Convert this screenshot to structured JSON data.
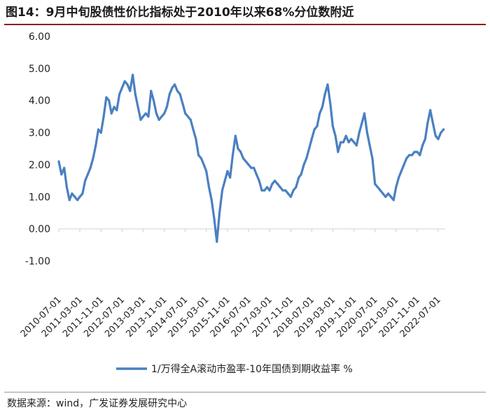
{
  "title": "图14：9月中旬股债性价比指标处于2010年以来68%分位数附近",
  "source": "数据来源：wind，广发证券发展研究中心",
  "colors": {
    "series": "#4a80c2",
    "axis": "#d0d0d0",
    "title_rule": "#8a1f1f"
  },
  "chart_data": {
    "type": "line",
    "title": "",
    "xlabel": "",
    "ylabel": "",
    "ylim": [
      -1.0,
      6.0
    ],
    "yticks": [
      "6.00",
      "5.00",
      "4.00",
      "3.00",
      "2.00",
      "1.00",
      "0.00",
      "-1.00"
    ],
    "xticks": [
      "2010-07-01",
      "2011-03-01",
      "2011-11-01",
      "2012-07-01",
      "2013-03-01",
      "2013-11-01",
      "2014-07-01",
      "2015-03-01",
      "2015-11-01",
      "2016-07-01",
      "2017-03-01",
      "2017-11-01",
      "2018-07-01",
      "2019-03-01",
      "2019-11-01",
      "2020-07-01",
      "2021-03-01",
      "2021-11-01",
      "2022-07-01"
    ],
    "legend": "bottom",
    "series": [
      {
        "name": "1/万得全A滚动市盈率-10年国债到期收益率 %",
        "points": [
          [
            "2010-07-01",
            2.1
          ],
          [
            "2010-08-01",
            1.7
          ],
          [
            "2010-09-01",
            1.9
          ],
          [
            "2010-10-01",
            1.3
          ],
          [
            "2010-11-01",
            0.9
          ],
          [
            "2010-12-01",
            1.1
          ],
          [
            "2011-01-01",
            1.0
          ],
          [
            "2011-02-01",
            0.9
          ],
          [
            "2011-03-01",
            1.0
          ],
          [
            "2011-04-01",
            1.1
          ],
          [
            "2011-05-01",
            1.5
          ],
          [
            "2011-06-01",
            1.7
          ],
          [
            "2011-07-01",
            1.9
          ],
          [
            "2011-08-01",
            2.2
          ],
          [
            "2011-09-01",
            2.6
          ],
          [
            "2011-10-01",
            3.1
          ],
          [
            "2011-11-01",
            3.0
          ],
          [
            "2011-12-01",
            3.5
          ],
          [
            "2012-01-01",
            4.1
          ],
          [
            "2012-02-01",
            4.0
          ],
          [
            "2012-03-01",
            3.6
          ],
          [
            "2012-04-01",
            3.8
          ],
          [
            "2012-05-01",
            3.7
          ],
          [
            "2012-06-01",
            4.2
          ],
          [
            "2012-07-01",
            4.4
          ],
          [
            "2012-08-01",
            4.6
          ],
          [
            "2012-09-01",
            4.5
          ],
          [
            "2012-10-01",
            4.3
          ],
          [
            "2012-11-01",
            4.8
          ],
          [
            "2012-12-01",
            4.2
          ],
          [
            "2013-01-01",
            3.8
          ],
          [
            "2013-02-01",
            3.4
          ],
          [
            "2013-03-01",
            3.5
          ],
          [
            "2013-04-01",
            3.6
          ],
          [
            "2013-05-01",
            3.5
          ],
          [
            "2013-06-01",
            4.3
          ],
          [
            "2013-07-01",
            4.0
          ],
          [
            "2013-08-01",
            3.6
          ],
          [
            "2013-09-01",
            3.4
          ],
          [
            "2013-10-01",
            3.5
          ],
          [
            "2013-11-01",
            3.6
          ],
          [
            "2013-12-01",
            3.8
          ],
          [
            "2014-01-01",
            4.2
          ],
          [
            "2014-02-01",
            4.4
          ],
          [
            "2014-03-01",
            4.5
          ],
          [
            "2014-04-01",
            4.3
          ],
          [
            "2014-05-01",
            4.2
          ],
          [
            "2014-06-01",
            3.9
          ],
          [
            "2014-07-01",
            3.6
          ],
          [
            "2014-08-01",
            3.5
          ],
          [
            "2014-09-01",
            3.4
          ],
          [
            "2014-10-01",
            3.1
          ],
          [
            "2014-11-01",
            2.8
          ],
          [
            "2014-12-01",
            2.3
          ],
          [
            "2015-01-01",
            2.2
          ],
          [
            "2015-02-01",
            2.0
          ],
          [
            "2015-03-01",
            1.8
          ],
          [
            "2015-04-01",
            1.3
          ],
          [
            "2015-05-01",
            0.9
          ],
          [
            "2015-06-01",
            0.3
          ],
          [
            "2015-07-01",
            -0.4
          ],
          [
            "2015-08-01",
            0.5
          ],
          [
            "2015-09-01",
            1.2
          ],
          [
            "2015-10-01",
            1.5
          ],
          [
            "2015-11-01",
            1.8
          ],
          [
            "2015-12-01",
            1.6
          ],
          [
            "2016-01-01",
            2.3
          ],
          [
            "2016-02-01",
            2.9
          ],
          [
            "2016-03-01",
            2.5
          ],
          [
            "2016-04-01",
            2.4
          ],
          [
            "2016-05-01",
            2.2
          ],
          [
            "2016-06-01",
            2.1
          ],
          [
            "2016-07-01",
            2.0
          ],
          [
            "2016-08-01",
            1.9
          ],
          [
            "2016-09-01",
            1.9
          ],
          [
            "2016-10-01",
            1.7
          ],
          [
            "2016-11-01",
            1.5
          ],
          [
            "2016-12-01",
            1.2
          ],
          [
            "2017-01-01",
            1.2
          ],
          [
            "2017-02-01",
            1.3
          ],
          [
            "2017-03-01",
            1.2
          ],
          [
            "2017-04-01",
            1.4
          ],
          [
            "2017-05-01",
            1.5
          ],
          [
            "2017-06-01",
            1.4
          ],
          [
            "2017-07-01",
            1.3
          ],
          [
            "2017-08-01",
            1.2
          ],
          [
            "2017-09-01",
            1.2
          ],
          [
            "2017-10-01",
            1.1
          ],
          [
            "2017-11-01",
            1.0
          ],
          [
            "2017-12-01",
            1.2
          ],
          [
            "2018-01-01",
            1.3
          ],
          [
            "2018-02-01",
            1.6
          ],
          [
            "2018-03-01",
            1.7
          ],
          [
            "2018-04-01",
            2.0
          ],
          [
            "2018-05-01",
            2.2
          ],
          [
            "2018-06-01",
            2.5
          ],
          [
            "2018-07-01",
            2.8
          ],
          [
            "2018-08-01",
            3.1
          ],
          [
            "2018-09-01",
            3.2
          ],
          [
            "2018-10-01",
            3.6
          ],
          [
            "2018-11-01",
            3.8
          ],
          [
            "2018-12-01",
            4.2
          ],
          [
            "2019-01-01",
            4.5
          ],
          [
            "2019-02-01",
            3.9
          ],
          [
            "2019-03-01",
            3.2
          ],
          [
            "2019-04-01",
            2.9
          ],
          [
            "2019-05-01",
            2.4
          ],
          [
            "2019-06-01",
            2.7
          ],
          [
            "2019-07-01",
            2.7
          ],
          [
            "2019-08-01",
            2.9
          ],
          [
            "2019-09-01",
            2.7
          ],
          [
            "2019-10-01",
            2.8
          ],
          [
            "2019-11-01",
            2.7
          ],
          [
            "2019-12-01",
            2.6
          ],
          [
            "2020-01-01",
            3.0
          ],
          [
            "2020-02-01",
            3.3
          ],
          [
            "2020-03-01",
            3.6
          ],
          [
            "2020-04-01",
            3.0
          ],
          [
            "2020-05-01",
            2.6
          ],
          [
            "2020-06-01",
            2.2
          ],
          [
            "2020-07-01",
            1.4
          ],
          [
            "2020-08-01",
            1.3
          ],
          [
            "2020-09-01",
            1.2
          ],
          [
            "2020-10-01",
            1.1
          ],
          [
            "2020-11-01",
            1.0
          ],
          [
            "2020-12-01",
            1.1
          ],
          [
            "2021-01-01",
            1.0
          ],
          [
            "2021-02-01",
            0.9
          ],
          [
            "2021-03-01",
            1.3
          ],
          [
            "2021-04-01",
            1.6
          ],
          [
            "2021-05-01",
            1.8
          ],
          [
            "2021-06-01",
            2.0
          ],
          [
            "2021-07-01",
            2.2
          ],
          [
            "2021-08-01",
            2.3
          ],
          [
            "2021-09-01",
            2.3
          ],
          [
            "2021-10-01",
            2.4
          ],
          [
            "2021-11-01",
            2.4
          ],
          [
            "2021-12-01",
            2.3
          ],
          [
            "2022-01-01",
            2.6
          ],
          [
            "2022-02-01",
            2.8
          ],
          [
            "2022-03-01",
            3.3
          ],
          [
            "2022-04-01",
            3.7
          ],
          [
            "2022-05-01",
            3.3
          ],
          [
            "2022-06-01",
            2.9
          ],
          [
            "2022-07-01",
            2.8
          ],
          [
            "2022-08-01",
            3.0
          ],
          [
            "2022-09-01",
            3.1
          ]
        ]
      }
    ]
  }
}
